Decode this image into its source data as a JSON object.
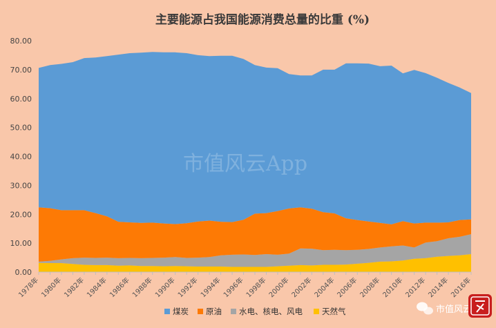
{
  "chart_data": {
    "type": "area",
    "stacked": true,
    "title": "主要能源占我国能源消费总量的比重 (%)",
    "xlabel": "",
    "ylabel": "",
    "ylim": [
      0,
      80
    ],
    "yticks": [
      "0.00",
      "10.00",
      "20.00",
      "30.00",
      "40.00",
      "50.00",
      "60.00",
      "70.00",
      "80.00"
    ],
    "grid": false,
    "legend_position": "bottom",
    "x": [
      "1978年",
      "1979年",
      "1980年",
      "1981年",
      "1982年",
      "1983年",
      "1984年",
      "1985年",
      "1986年",
      "1987年",
      "1988年",
      "1989年",
      "1990年",
      "1991年",
      "1992年",
      "1993年",
      "1994年",
      "1995年",
      "1996年",
      "1997年",
      "1998年",
      "1999年",
      "2000年",
      "2001年",
      "2002年",
      "2003年",
      "2004年",
      "2005年",
      "2006年",
      "2007年",
      "2008年",
      "2009年",
      "2010年",
      "2011年",
      "2012年",
      "2013年",
      "2014年",
      "2015年",
      "2016年"
    ],
    "xtick_labels": [
      "1978年",
      "1980年",
      "1982年",
      "1984年",
      "1986年",
      "1988年",
      "1990年",
      "1992年",
      "1994年",
      "1996年",
      "1998年",
      "2000年",
      "2002年",
      "2004年",
      "2006年",
      "2008年",
      "2010年",
      "2012年",
      "2014年",
      "2016年"
    ],
    "series": [
      {
        "name": "天然气",
        "color": "#ffc000",
        "values": [
          3.2,
          3.1,
          3.1,
          2.8,
          2.5,
          2.4,
          2.4,
          2.2,
          2.3,
          2.1,
          2.1,
          2.0,
          2.1,
          2.0,
          1.9,
          1.9,
          1.9,
          1.8,
          1.8,
          1.8,
          1.8,
          2.0,
          2.2,
          2.4,
          2.3,
          2.5,
          2.5,
          2.6,
          2.9,
          3.2,
          3.6,
          3.7,
          4.0,
          4.6,
          4.8,
          5.3,
          5.6,
          5.8,
          6.2
        ]
      },
      {
        "name": "水电、核电、风电",
        "color": "#a5a5a5",
        "values": [
          0.4,
          0.8,
          1.3,
          2.0,
          2.5,
          2.5,
          2.6,
          2.6,
          2.6,
          2.7,
          2.8,
          3.0,
          3.1,
          2.9,
          3.1,
          3.3,
          3.9,
          4.2,
          4.3,
          4.1,
          4.4,
          4.0,
          4.2,
          5.8,
          5.8,
          5.1,
          5.2,
          5.0,
          4.8,
          4.8,
          4.9,
          5.2,
          5.2,
          3.9,
          5.4,
          5.4,
          6.1,
          6.4,
          6.9
        ]
      },
      {
        "name": "原油",
        "color": "#fd7a05",
        "values": [
          18.8,
          18.2,
          17.0,
          16.6,
          16.4,
          15.5,
          14.3,
          12.6,
          12.3,
          12.2,
          12.2,
          11.8,
          11.4,
          12.0,
          12.5,
          12.6,
          11.6,
          11.3,
          12.0,
          14.3,
          14.2,
          15.1,
          15.6,
          14.2,
          13.8,
          13.1,
          12.6,
          11.0,
          10.3,
          9.5,
          8.5,
          7.6,
          8.4,
          8.3,
          6.9,
          6.4,
          5.5,
          5.8,
          5.1
        ]
      },
      {
        "name": "煤炭",
        "color": "#5b9bd5",
        "values": [
          48.2,
          49.5,
          50.6,
          51.2,
          52.6,
          53.8,
          55.4,
          57.8,
          58.5,
          58.9,
          59.0,
          59.2,
          59.4,
          58.8,
          57.5,
          56.9,
          57.4,
          57.5,
          55.6,
          51.4,
          50.3,
          49.4,
          46.5,
          45.6,
          46.1,
          49.3,
          49.7,
          53.6,
          54.2,
          54.6,
          54.2,
          54.9,
          51.1,
          53.1,
          51.7,
          50.1,
          48.2,
          45.8,
          43.7
        ]
      }
    ]
  },
  "watermark": "市值风云App",
  "brand": {
    "name": "市值风云"
  }
}
